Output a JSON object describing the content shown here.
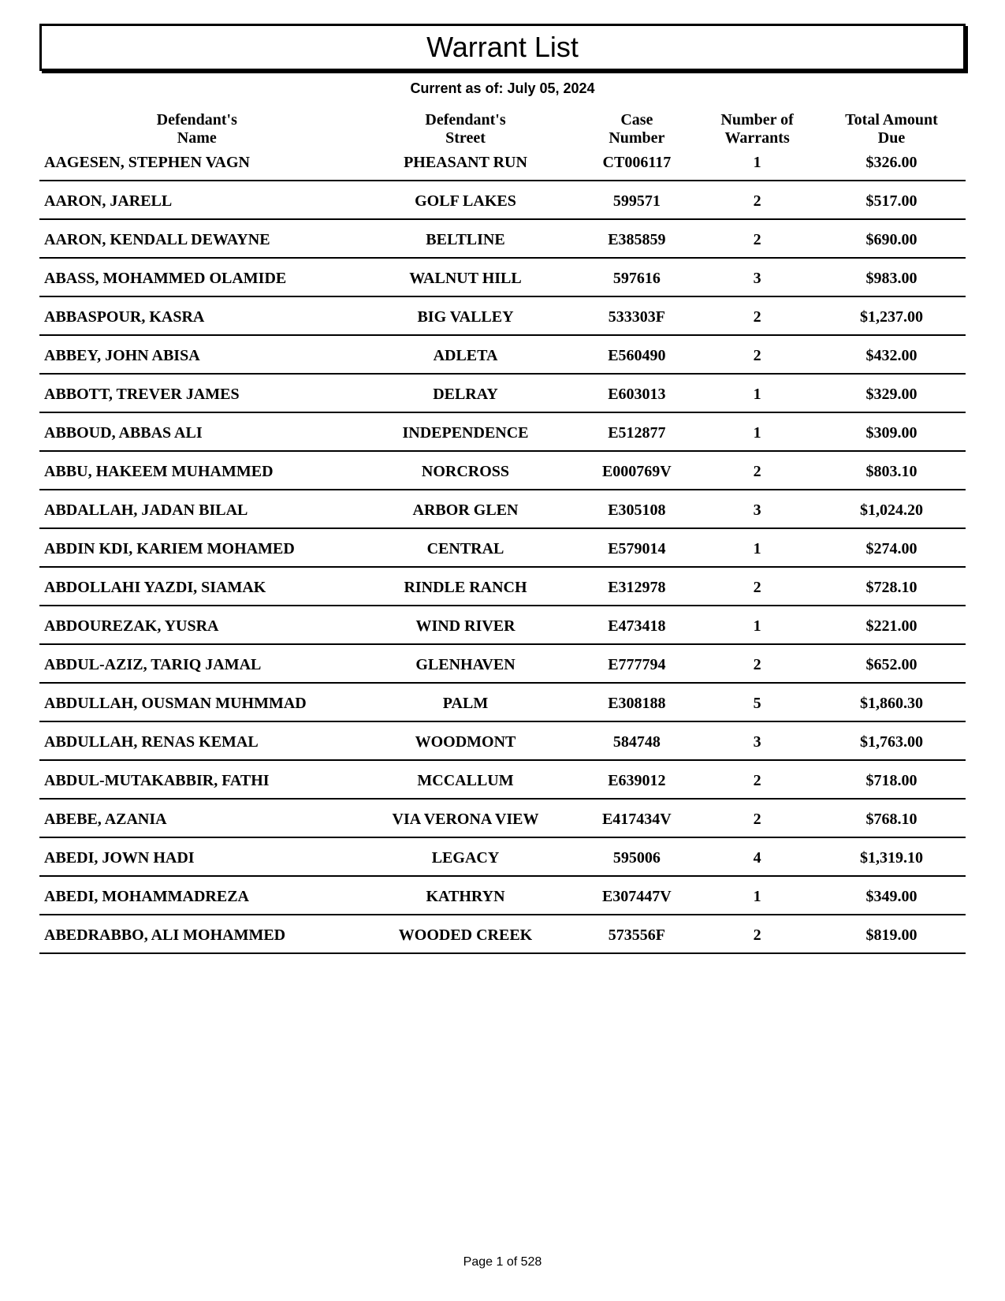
{
  "title": "Warrant List",
  "subtitle": "Current as of:  July 05, 2024",
  "columns": {
    "name": "Defendant's\nName",
    "street": "Defendant's\nStreet",
    "case": "Case\nNumber",
    "warrants": "Number of\nWarrants",
    "amount": "Total Amount\nDue"
  },
  "rows": [
    {
      "name": "AAGESEN, STEPHEN VAGN",
      "street": "PHEASANT RUN",
      "case": "CT006117",
      "warrants": "1",
      "amount": "$326.00"
    },
    {
      "name": "AARON, JARELL",
      "street": "GOLF LAKES",
      "case": "599571",
      "warrants": "2",
      "amount": "$517.00"
    },
    {
      "name": "AARON, KENDALL DEWAYNE",
      "street": "BELTLINE",
      "case": "E385859",
      "warrants": "2",
      "amount": "$690.00"
    },
    {
      "name": "ABASS, MOHAMMED OLAMIDE",
      "street": "WALNUT HILL",
      "case": "597616",
      "warrants": "3",
      "amount": "$983.00"
    },
    {
      "name": "ABBASPOUR, KASRA",
      "street": "BIG VALLEY",
      "case": "533303F",
      "warrants": "2",
      "amount": "$1,237.00"
    },
    {
      "name": "ABBEY, JOHN ABISA",
      "street": "ADLETA",
      "case": "E560490",
      "warrants": "2",
      "amount": "$432.00"
    },
    {
      "name": "ABBOTT, TREVER JAMES",
      "street": "DELRAY",
      "case": "E603013",
      "warrants": "1",
      "amount": "$329.00"
    },
    {
      "name": "ABBOUD, ABBAS ALI",
      "street": "INDEPENDENCE",
      "case": "E512877",
      "warrants": "1",
      "amount": "$309.00"
    },
    {
      "name": "ABBU, HAKEEM MUHAMMED",
      "street": "NORCROSS",
      "case": "E000769V",
      "warrants": "2",
      "amount": "$803.10"
    },
    {
      "name": "ABDALLAH, JADAN BILAL",
      "street": "ARBOR GLEN",
      "case": "E305108",
      "warrants": "3",
      "amount": "$1,024.20"
    },
    {
      "name": "ABDIN KDI, KARIEM MOHAMED",
      "street": "CENTRAL",
      "case": "E579014",
      "warrants": "1",
      "amount": "$274.00"
    },
    {
      "name": "ABDOLLAHI YAZDI, SIAMAK",
      "street": "RINDLE RANCH",
      "case": "E312978",
      "warrants": "2",
      "amount": "$728.10"
    },
    {
      "name": "ABDOUREZAK, YUSRA",
      "street": "WIND RIVER",
      "case": "E473418",
      "warrants": "1",
      "amount": "$221.00"
    },
    {
      "name": "ABDUL-AZIZ, TARIQ JAMAL",
      "street": "GLENHAVEN",
      "case": "E777794",
      "warrants": "2",
      "amount": "$652.00"
    },
    {
      "name": "ABDULLAH, OUSMAN MUHMMAD",
      "street": "PALM",
      "case": "E308188",
      "warrants": "5",
      "amount": "$1,860.30"
    },
    {
      "name": "ABDULLAH, RENAS KEMAL",
      "street": "WOODMONT",
      "case": "584748",
      "warrants": "3",
      "amount": "$1,763.00"
    },
    {
      "name": "ABDUL-MUTAKABBIR, FATHI",
      "street": "MCCALLUM",
      "case": "E639012",
      "warrants": "2",
      "amount": "$718.00"
    },
    {
      "name": "ABEBE, AZANIA",
      "street": "VIA VERONA VIEW",
      "case": "E417434V",
      "warrants": "2",
      "amount": "$768.10"
    },
    {
      "name": "ABEDI, JOWN HADI",
      "street": "LEGACY",
      "case": "595006",
      "warrants": "4",
      "amount": "$1,319.10"
    },
    {
      "name": "ABEDI, MOHAMMADREZA",
      "street": "KATHRYN",
      "case": "E307447V",
      "warrants": "1",
      "amount": "$349.00"
    },
    {
      "name": "ABEDRABBO, ALI MOHAMMED",
      "street": "WOODED CREEK",
      "case": "573556F",
      "warrants": "2",
      "amount": "$819.00"
    }
  ],
  "footer": "Page 1 of 528"
}
